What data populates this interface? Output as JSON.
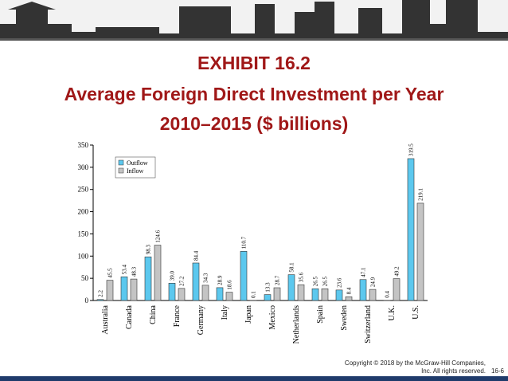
{
  "slide": {
    "title_lines": [
      "EXHIBIT 16.2",
      "Average Foreign Direct Investment per Year",
      "2010–2015 ($ billions)"
    ],
    "copyright_lines": [
      "Copyright © 2018 by the McGraw-Hill Companies,",
      "Inc. All rights reserved."
    ],
    "page": "16-6"
  },
  "chart_data": {
    "type": "bar",
    "legend": "upper left",
    "grid": false,
    "categories": [
      "Australia",
      "Canada",
      "China",
      "France",
      "Germany",
      "Italy",
      "Japan",
      "Mexico",
      "Netherlands",
      "Spain",
      "Sweden",
      "Switzerland",
      "U.K.",
      "U.S."
    ],
    "series": [
      {
        "name": "Outflow",
        "color": "#5cc8ee",
        "values": [
          2.2,
          53.4,
          98.3,
          39.0,
          84.4,
          28.9,
          110.7,
          13.3,
          58.1,
          26.5,
          23.6,
          47.1,
          0.4,
          319.5
        ],
        "value_labels": [
          "2.2",
          "53.4",
          "98.3",
          "39.0",
          "84.4",
          "28.9",
          "110.7",
          "13.3",
          "58.1",
          "26.5",
          "23.6",
          "47.1",
          "0.4",
          "319.5"
        ]
      },
      {
        "name": "Inflow",
        "color": "#c4c4c4",
        "values": [
          45.5,
          48.3,
          124.6,
          27.2,
          34.3,
          18.6,
          0.1,
          28.7,
          35.6,
          26.5,
          8.4,
          24.9,
          49.2,
          219.1
        ],
        "value_labels": [
          "45.5",
          "48.3",
          "124.6",
          "27.2",
          "34.3",
          "18.6",
          "0.1",
          "28.7",
          "35.6",
          "26.5",
          "8.4",
          "24.9",
          "49.2",
          "219.1"
        ]
      }
    ],
    "ylim": [
      0,
      350
    ],
    "yticks": [
      0,
      50,
      100,
      150,
      200,
      250,
      300,
      350
    ]
  }
}
